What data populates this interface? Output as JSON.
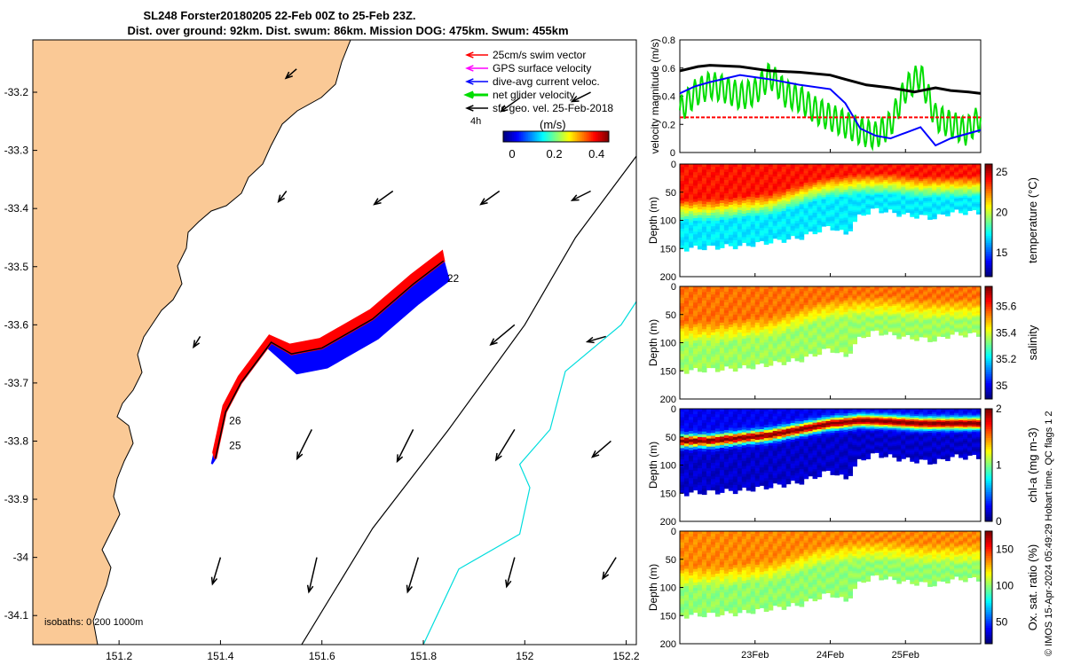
{
  "chart_data": [
    {
      "type": "map",
      "title_line1": "SL248 Forster20180205 22-Feb 00Z to 25-Feb 23Z.",
      "title_line2": "Dist. over ground: 92km. Dist. swum: 86km. Mission DOG: 475km. Swum: 455km",
      "xlim": [
        151.03,
        152.22
      ],
      "ylim": [
        -34.15,
        -33.11
      ],
      "x_ticks": [
        "151.2",
        "151.4",
        "151.6",
        "151.8",
        "152",
        "152.2"
      ],
      "x_tick_values": [
        151.2,
        151.4,
        151.6,
        151.8,
        152.0,
        152.2
      ],
      "y_ticks": [
        "-33.2",
        "-33.3",
        "-33.4",
        "-33.5",
        "-33.6",
        "-33.7",
        "-33.8",
        "-33.9",
        "-34",
        "-34.1"
      ],
      "y_tick_values": [
        -33.2,
        -33.3,
        -33.4,
        -33.5,
        -33.6,
        -33.7,
        -33.8,
        -33.9,
        -34.0,
        -34.1
      ],
      "legend": [
        {
          "label": "25cm/s swim vector",
          "color": "#ff0000"
        },
        {
          "label": "GPS surface velocity",
          "color": "#ff00ff"
        },
        {
          "label": "dive-avg current veloc.",
          "color": "#0000ff"
        },
        {
          "label": "net glider velocity",
          "color": "#00dd00"
        },
        {
          "label": "sfc geo. vel. 25-Feb-2018",
          "color": "#000000"
        }
      ],
      "scale_label": "4h",
      "colorbar_label": "(m/s)",
      "colorbar_ticks": [
        "0",
        "0.2",
        "0.4"
      ],
      "isobaths_label": "isobaths: 0   200  1000m",
      "day_labels": [
        {
          "text": "22",
          "lon": 151.84,
          "lat": -33.52
        },
        {
          "text": "26",
          "lon": 151.41,
          "lat": -33.765
        },
        {
          "text": "25",
          "lon": 151.41,
          "lat": -33.808
        }
      ],
      "geo_vectors": [
        {
          "lon": 151.55,
          "lat": -33.16,
          "u": -0.04,
          "v": -0.035
        },
        {
          "lon": 151.99,
          "lat": -33.21,
          "u": -0.07,
          "v": -0.05
        },
        {
          "lon": 152.13,
          "lat": -33.2,
          "u": -0.07,
          "v": -0.035
        },
        {
          "lon": 151.53,
          "lat": -33.37,
          "u": -0.03,
          "v": -0.04
        },
        {
          "lon": 151.74,
          "lat": -33.37,
          "u": -0.07,
          "v": -0.05
        },
        {
          "lon": 151.95,
          "lat": -33.37,
          "u": -0.07,
          "v": -0.05
        },
        {
          "lon": 152.13,
          "lat": -33.37,
          "u": -0.07,
          "v": -0.035
        },
        {
          "lon": 151.36,
          "lat": -33.62,
          "u": -0.025,
          "v": -0.04
        },
        {
          "lon": 151.98,
          "lat": -33.6,
          "u": -0.09,
          "v": -0.075
        },
        {
          "lon": 152.16,
          "lat": -33.62,
          "u": -0.07,
          "v": -0.02
        },
        {
          "lon": 151.58,
          "lat": -33.78,
          "u": -0.055,
          "v": -0.11
        },
        {
          "lon": 151.78,
          "lat": -33.78,
          "u": -0.06,
          "v": -0.12
        },
        {
          "lon": 151.98,
          "lat": -33.78,
          "u": -0.07,
          "v": -0.115
        },
        {
          "lon": 152.17,
          "lat": -33.8,
          "u": -0.07,
          "v": -0.06
        },
        {
          "lon": 151.4,
          "lat": -34.0,
          "u": -0.03,
          "v": -0.1
        },
        {
          "lon": 151.59,
          "lat": -34.0,
          "u": -0.03,
          "v": -0.13
        },
        {
          "lon": 151.79,
          "lat": -34.0,
          "u": -0.04,
          "v": -0.13
        },
        {
          "lon": 151.98,
          "lat": -34.0,
          "u": -0.03,
          "v": -0.11
        },
        {
          "lon": 152.18,
          "lat": -34.0,
          "u": -0.05,
          "v": -0.08
        }
      ],
      "isobath_200m": [
        [
          151.56,
          -34.15
        ],
        [
          151.7,
          -33.95
        ],
        [
          151.85,
          -33.78
        ],
        [
          152.0,
          -33.6
        ],
        [
          152.1,
          -33.45
        ],
        [
          152.22,
          -33.31
        ]
      ],
      "isobath_1000m": [
        [
          151.8,
          -34.15
        ],
        [
          151.87,
          -34.02
        ],
        [
          151.99,
          -33.96
        ],
        [
          152.01,
          -33.88
        ],
        [
          151.99,
          -33.84
        ],
        [
          152.05,
          -33.78
        ],
        [
          152.08,
          -33.68
        ],
        [
          152.19,
          -33.6
        ],
        [
          152.22,
          -33.56
        ]
      ],
      "glider_track": [
        [
          151.84,
          -33.49
        ],
        [
          151.78,
          -33.53
        ],
        [
          151.7,
          -33.59
        ],
        [
          151.6,
          -33.64
        ],
        [
          151.54,
          -33.65
        ],
        [
          151.5,
          -33.63
        ],
        [
          151.44,
          -33.7
        ],
        [
          151.41,
          -33.75
        ],
        [
          151.4,
          -33.79
        ],
        [
          151.39,
          -33.83
        ]
      ]
    },
    {
      "type": "line",
      "ylabel": "velocity magnitude (m/s)",
      "xlim": [
        0,
        1
      ],
      "ylim": [
        0,
        0.8
      ],
      "y_ticks": [
        "0",
        "0.2",
        "0.4",
        "0.6",
        "0.8"
      ],
      "y_tick_values": [
        0,
        0.2,
        0.4,
        0.6,
        0.8
      ],
      "series": [
        {
          "name": "black",
          "color": "#000000",
          "x": [
            0,
            0.06,
            0.1,
            0.2,
            0.3,
            0.4,
            0.5,
            0.55,
            0.62,
            0.7,
            0.78,
            0.85,
            0.9,
            0.96,
            1.0
          ],
          "values": [
            0.58,
            0.61,
            0.62,
            0.61,
            0.58,
            0.57,
            0.55,
            0.52,
            0.48,
            0.46,
            0.43,
            0.46,
            0.44,
            0.43,
            0.42
          ]
        },
        {
          "name": "blue",
          "color": "#0000ff",
          "x": [
            0,
            0.05,
            0.1,
            0.2,
            0.3,
            0.4,
            0.5,
            0.55,
            0.6,
            0.65,
            0.7,
            0.75,
            0.8,
            0.85,
            0.9,
            0.95,
            1.0
          ],
          "values": [
            0.42,
            0.47,
            0.5,
            0.55,
            0.52,
            0.48,
            0.45,
            0.35,
            0.17,
            0.12,
            0.1,
            0.14,
            0.18,
            0.05,
            0.1,
            0.13,
            0.16
          ]
        },
        {
          "name": "red",
          "color": "#ff0000",
          "x": [
            0,
            1.0
          ],
          "values": [
            0.25,
            0.25
          ]
        }
      ],
      "oscillating_series": {
        "name": "green",
        "color": "#00dd00",
        "x": [
          0,
          0.05,
          0.1,
          0.15,
          0.2,
          0.25,
          0.3,
          0.35,
          0.4,
          0.45,
          0.5,
          0.55,
          0.6,
          0.65,
          0.7,
          0.75,
          0.8,
          0.85,
          0.9,
          0.95,
          1.0
        ],
        "values": [
          0.3,
          0.42,
          0.48,
          0.45,
          0.4,
          0.43,
          0.55,
          0.42,
          0.38,
          0.3,
          0.25,
          0.2,
          0.15,
          0.12,
          0.2,
          0.45,
          0.55,
          0.25,
          0.2,
          0.15,
          0.25
        ],
        "amplitude": 0.1
      }
    },
    {
      "type": "heatmap",
      "ylabel": "Depth (m)",
      "colorbar_label": "temperature (°C)",
      "y_ticks": [
        "0",
        "50",
        "100",
        "150",
        "200"
      ],
      "y_tick_values": [
        0,
        50,
        100,
        150,
        200
      ],
      "clim": [
        12,
        26
      ],
      "colorbar_ticks": [
        "15",
        "20",
        "25"
      ],
      "colorbar_tick_values": [
        15,
        20,
        25
      ],
      "surface_value": 24,
      "deep_value": 17,
      "mld_x": [
        0,
        0.1,
        0.3,
        0.45,
        0.5,
        0.6,
        0.7,
        0.8,
        1.0
      ],
      "mld_depth": [
        60,
        60,
        50,
        25,
        20,
        15,
        15,
        20,
        20
      ],
      "bottom_x": [
        0,
        0.2,
        0.4,
        0.5,
        0.55,
        0.6,
        0.65,
        0.75,
        0.85,
        0.9,
        1.0
      ],
      "bottom_depth": [
        150,
        145,
        130,
        110,
        125,
        90,
        80,
        90,
        95,
        85,
        85
      ]
    },
    {
      "type": "heatmap",
      "ylabel": "Depth (m)",
      "colorbar_label": "salinity",
      "y_ticks": [
        "0",
        "50",
        "100",
        "150",
        "200"
      ],
      "y_tick_values": [
        0,
        50,
        100,
        150,
        200
      ],
      "clim": [
        34.9,
        35.75
      ],
      "colorbar_ticks": [
        "35",
        "35.2",
        "35.4",
        "35.6"
      ],
      "colorbar_tick_values": [
        35.0,
        35.2,
        35.4,
        35.6
      ],
      "surface_value": 35.55,
      "deep_value": 35.35,
      "mld_x": [
        0,
        0.1,
        0.3,
        0.45,
        0.5,
        0.6,
        0.7,
        0.8,
        1.0
      ],
      "mld_depth": [
        60,
        60,
        50,
        25,
        20,
        15,
        15,
        20,
        20
      ],
      "bottom_x": [
        0,
        0.2,
        0.4,
        0.5,
        0.55,
        0.6,
        0.65,
        0.75,
        0.85,
        0.9,
        1.0
      ],
      "bottom_depth": [
        150,
        145,
        130,
        110,
        125,
        90,
        80,
        90,
        95,
        85,
        85
      ]
    },
    {
      "type": "heatmap",
      "ylabel": "Depth (m)",
      "colorbar_label": "chl-a (mg m-3)",
      "y_ticks": [
        "0",
        "50",
        "100",
        "150",
        "200"
      ],
      "y_tick_values": [
        0,
        50,
        100,
        150,
        200
      ],
      "clim": [
        0,
        2
      ],
      "colorbar_ticks": [
        "0",
        "1",
        "2"
      ],
      "colorbar_tick_values": [
        0,
        1,
        2
      ],
      "surface_value": 0.3,
      "deep_value": 0.15,
      "max_value": 2.0,
      "max_x": [
        0,
        0.1,
        0.3,
        0.45,
        0.5,
        0.6,
        0.7,
        0.8,
        1.0
      ],
      "max_depth": [
        55,
        55,
        45,
        30,
        25,
        20,
        22,
        25,
        25
      ],
      "bottom_x": [
        0,
        0.2,
        0.4,
        0.5,
        0.55,
        0.6,
        0.65,
        0.75,
        0.85,
        0.9,
        1.0
      ],
      "bottom_depth": [
        150,
        145,
        130,
        110,
        125,
        90,
        80,
        90,
        95,
        85,
        85
      ]
    },
    {
      "type": "heatmap",
      "ylabel": "Depth (m)",
      "colorbar_label": "Ox. sat. ratio (%)",
      "y_ticks": [
        "0",
        "50",
        "100",
        "150",
        "200"
      ],
      "y_tick_values": [
        0,
        50,
        100,
        150,
        200
      ],
      "clim": [
        20,
        175
      ],
      "colorbar_ticks": [
        "50",
        "100",
        "150"
      ],
      "colorbar_tick_values": [
        50,
        100,
        150
      ],
      "surface_value": 135,
      "deep_value": 100,
      "mld_x": [
        0,
        0.1,
        0.3,
        0.45,
        0.5,
        0.6,
        0.7,
        0.8,
        1.0
      ],
      "mld_depth": [
        60,
        60,
        50,
        25,
        20,
        15,
        15,
        20,
        20
      ],
      "bottom_x": [
        0,
        0.2,
        0.4,
        0.5,
        0.55,
        0.6,
        0.65,
        0.75,
        0.85,
        0.9,
        1.0
      ],
      "bottom_depth": [
        150,
        145,
        130,
        110,
        125,
        90,
        80,
        90,
        95,
        85,
        85
      ]
    }
  ],
  "time_axis": {
    "labels": [
      "23Feb",
      "24Feb",
      "25Feb"
    ],
    "positions": [
      0.25,
      0.5,
      0.75
    ]
  },
  "side_note": "© IMOS 15-Apr-2024 05:49:29 Hobart time. QC flags 1  2",
  "colors": {
    "land": "#fac996",
    "coast": "#000000",
    "isobath_200": "#000000",
    "isobath_1000": "#00dddd",
    "swim": "#ff0000",
    "current": "#0000ff"
  }
}
